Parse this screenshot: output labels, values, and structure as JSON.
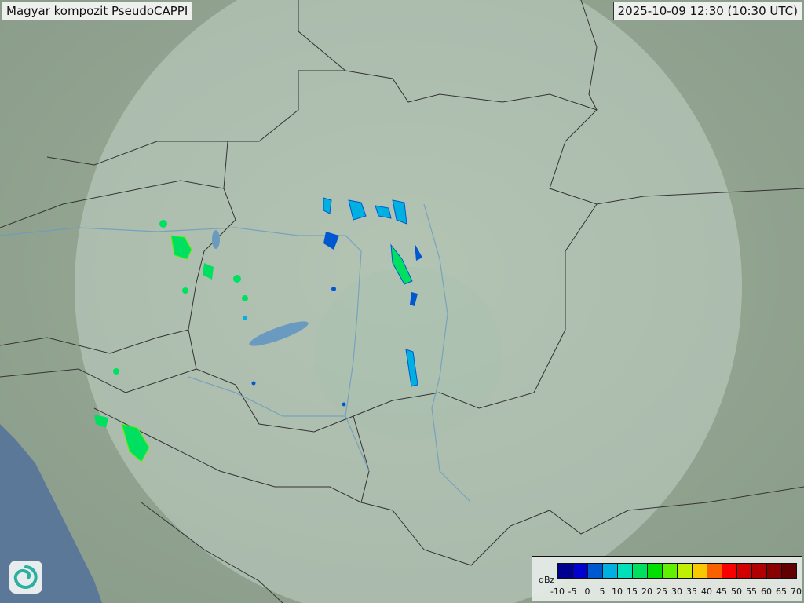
{
  "header": {
    "title": "Magyar kompozit  PseudoCAPPI",
    "timestamp": "2025-10-09 12:30 (10:30 UTC)"
  },
  "legend": {
    "unit": "dBz",
    "ticks": [
      "-10",
      "-5",
      "0",
      "5",
      "10",
      "15",
      "20",
      "25",
      "30",
      "35",
      "40",
      "45",
      "50",
      "55",
      "60",
      "65",
      "70"
    ],
    "colors": [
      "#000090",
      "#0000d0",
      "#0058d0",
      "#00b0e0",
      "#00e0b8",
      "#00e060",
      "#00e000",
      "#60f000",
      "#c0f000",
      "#f8c800",
      "#f86000",
      "#f80000",
      "#d00000",
      "#b00000",
      "#880000",
      "#600000"
    ]
  },
  "logo": {
    "icon": "swirl-logo-icon"
  },
  "colors": {
    "land": "#8ea08c",
    "coverage": "#c8d8cc",
    "sea": "#5b7898",
    "border": "#333333",
    "river": "#6a9ac0"
  }
}
